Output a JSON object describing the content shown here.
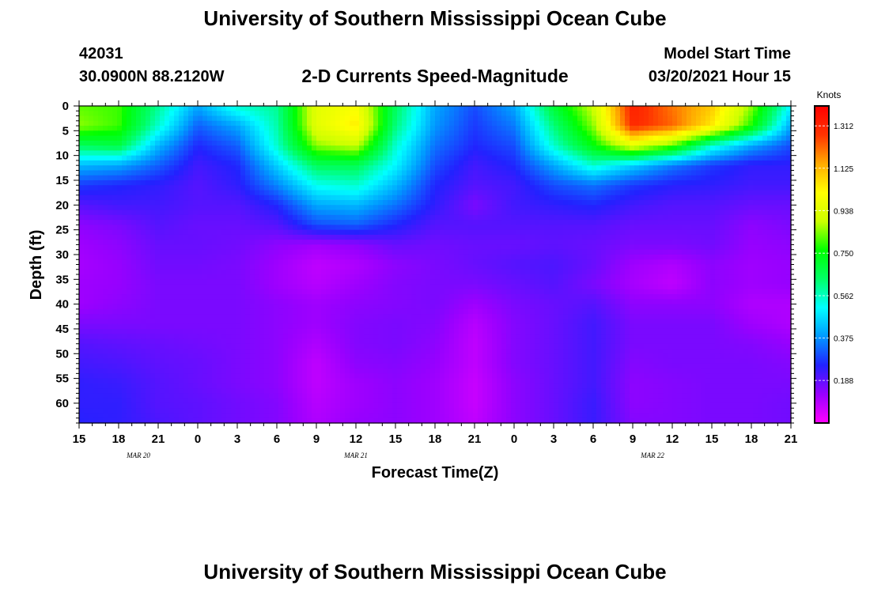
{
  "header": {
    "title": "University of Southern Mississippi Ocean Cube",
    "station_id": "42031",
    "station_coords": "30.0900N 88.2120W",
    "plot_title": "2-D Currents Speed-Magnitude",
    "model_start_label": "Model Start Time",
    "model_start_value": "03/20/2021 Hour 15"
  },
  "footer": {
    "title": "University of Southern Mississippi Ocean Cube"
  },
  "chart_data": {
    "type": "heatmap",
    "xlabel": "Forecast Time(Z)",
    "ylabel": "Depth (ft)",
    "x_tick_labels": [
      "15",
      "18",
      "21",
      "0",
      "3",
      "6",
      "9",
      "12",
      "15",
      "18",
      "21",
      "0",
      "3",
      "6",
      "9",
      "12",
      "15",
      "18",
      "21"
    ],
    "x_range_hours": [
      0,
      54
    ],
    "date_labels": [
      {
        "text": "MAR 20",
        "hour": 4.5
      },
      {
        "text": "MAR 21",
        "hour": 21
      },
      {
        "text": "MAR 22",
        "hour": 43.5
      }
    ],
    "y_tick_labels": [
      "0",
      "5",
      "10",
      "15",
      "20",
      "25",
      "30",
      "35",
      "40",
      "45",
      "50",
      "55",
      "60"
    ],
    "y_range_ft": [
      0,
      64
    ],
    "y_inverted": true,
    "colorbar": {
      "unit": "Knots",
      "range": [
        0,
        1.4
      ],
      "tick_labels": [
        "1.312",
        "1.125",
        "0.938",
        "0.750",
        "0.562",
        "0.375",
        "0.188"
      ],
      "tick_values": [
        1.312,
        1.125,
        0.938,
        0.75,
        0.562,
        0.375,
        0.188
      ],
      "colors": [
        "#ff00ff",
        "#9900ff",
        "#2222ff",
        "#0099ff",
        "#00ffff",
        "#00ff66",
        "#00ff00",
        "#ccff00",
        "#ffff00",
        "#ffaa00",
        "#ff3300",
        "#ff0000"
      ]
    },
    "time_hours": [
      0,
      3,
      6,
      9,
      12,
      15,
      18,
      21,
      24,
      27,
      30,
      33,
      36,
      39,
      42,
      45,
      48,
      51,
      54
    ],
    "depth_ft": [
      0,
      4,
      8,
      12,
      16,
      20,
      24,
      28,
      32,
      36,
      40,
      44,
      48,
      52,
      56,
      60,
      64
    ],
    "speed_knots": [
      [
        0.82,
        0.8,
        0.6,
        0.4,
        0.55,
        0.6,
        0.95,
        1.0,
        0.65,
        0.4,
        0.3,
        0.4,
        0.7,
        0.9,
        1.32,
        1.2,
        1.1,
        0.85,
        0.5
      ],
      [
        0.85,
        0.8,
        0.55,
        0.32,
        0.4,
        0.58,
        0.95,
        1.05,
        0.62,
        0.38,
        0.28,
        0.35,
        0.62,
        0.85,
        1.3,
        1.22,
        1.05,
        0.78,
        0.4
      ],
      [
        0.65,
        0.68,
        0.42,
        0.26,
        0.32,
        0.55,
        0.85,
        0.9,
        0.55,
        0.34,
        0.26,
        0.3,
        0.55,
        0.75,
        0.95,
        0.82,
        0.55,
        0.4,
        0.3
      ],
      [
        0.42,
        0.4,
        0.32,
        0.22,
        0.26,
        0.45,
        0.65,
        0.66,
        0.5,
        0.3,
        0.22,
        0.26,
        0.4,
        0.55,
        0.45,
        0.35,
        0.28,
        0.24,
        0.24
      ],
      [
        0.28,
        0.26,
        0.24,
        0.2,
        0.24,
        0.36,
        0.52,
        0.55,
        0.42,
        0.26,
        0.2,
        0.22,
        0.3,
        0.34,
        0.28,
        0.25,
        0.24,
        0.22,
        0.22
      ],
      [
        0.2,
        0.22,
        0.22,
        0.2,
        0.2,
        0.26,
        0.4,
        0.42,
        0.34,
        0.24,
        0.16,
        0.22,
        0.24,
        0.26,
        0.22,
        0.2,
        0.2,
        0.18,
        0.18
      ],
      [
        0.14,
        0.16,
        0.2,
        0.18,
        0.18,
        0.2,
        0.3,
        0.32,
        0.26,
        0.2,
        0.2,
        0.2,
        0.2,
        0.2,
        0.18,
        0.18,
        0.18,
        0.14,
        0.16
      ],
      [
        0.12,
        0.14,
        0.18,
        0.18,
        0.17,
        0.14,
        0.12,
        0.14,
        0.18,
        0.17,
        0.18,
        0.18,
        0.19,
        0.18,
        0.16,
        0.16,
        0.17,
        0.13,
        0.14
      ],
      [
        0.11,
        0.13,
        0.17,
        0.17,
        0.16,
        0.12,
        0.08,
        0.1,
        0.14,
        0.16,
        0.18,
        0.2,
        0.21,
        0.18,
        0.12,
        0.1,
        0.14,
        0.12,
        0.13
      ],
      [
        0.12,
        0.13,
        0.16,
        0.16,
        0.16,
        0.12,
        0.09,
        0.12,
        0.15,
        0.16,
        0.16,
        0.18,
        0.2,
        0.16,
        0.11,
        0.08,
        0.14,
        0.12,
        0.13
      ],
      [
        0.12,
        0.14,
        0.16,
        0.16,
        0.16,
        0.14,
        0.12,
        0.14,
        0.15,
        0.16,
        0.12,
        0.16,
        0.18,
        0.2,
        0.14,
        0.14,
        0.14,
        0.1,
        0.1
      ],
      [
        0.16,
        0.16,
        0.16,
        0.16,
        0.16,
        0.14,
        0.12,
        0.15,
        0.16,
        0.15,
        0.09,
        0.15,
        0.18,
        0.22,
        0.16,
        0.16,
        0.16,
        0.12,
        0.1
      ],
      [
        0.2,
        0.19,
        0.18,
        0.17,
        0.16,
        0.14,
        0.1,
        0.15,
        0.16,
        0.14,
        0.08,
        0.15,
        0.18,
        0.22,
        0.16,
        0.16,
        0.16,
        0.15,
        0.13
      ],
      [
        0.22,
        0.21,
        0.19,
        0.18,
        0.16,
        0.14,
        0.08,
        0.14,
        0.15,
        0.13,
        0.08,
        0.15,
        0.18,
        0.22,
        0.15,
        0.16,
        0.16,
        0.16,
        0.15
      ],
      [
        0.24,
        0.23,
        0.2,
        0.18,
        0.16,
        0.14,
        0.08,
        0.12,
        0.14,
        0.12,
        0.07,
        0.14,
        0.18,
        0.22,
        0.14,
        0.15,
        0.16,
        0.16,
        0.16
      ],
      [
        0.24,
        0.24,
        0.2,
        0.19,
        0.17,
        0.15,
        0.09,
        0.12,
        0.14,
        0.12,
        0.07,
        0.14,
        0.18,
        0.23,
        0.14,
        0.15,
        0.16,
        0.16,
        0.17
      ],
      [
        0.25,
        0.24,
        0.21,
        0.19,
        0.17,
        0.15,
        0.1,
        0.13,
        0.14,
        0.12,
        0.08,
        0.14,
        0.18,
        0.23,
        0.15,
        0.15,
        0.16,
        0.16,
        0.17
      ]
    ]
  }
}
